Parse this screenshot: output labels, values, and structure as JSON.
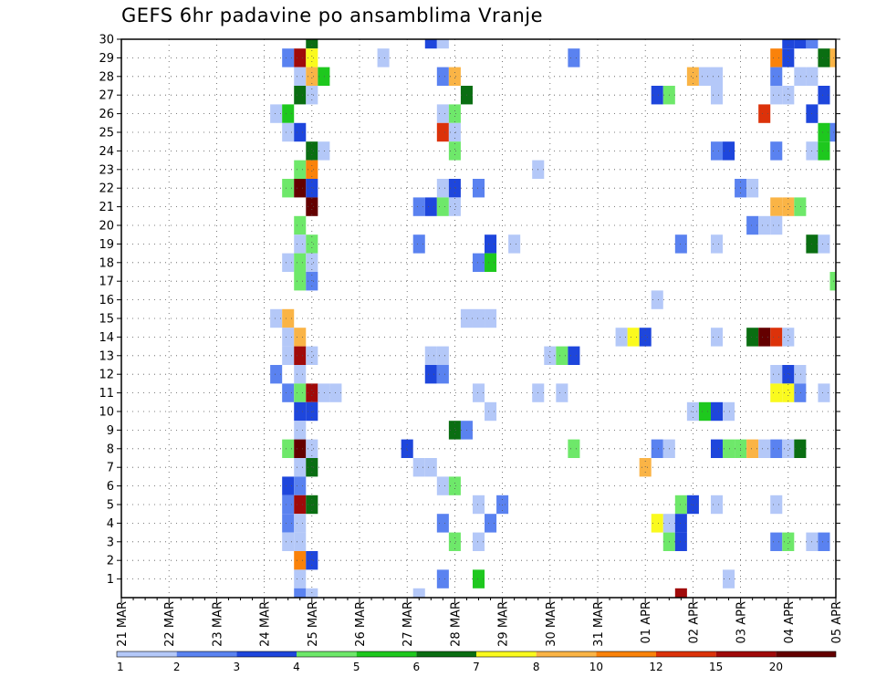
{
  "chart_data": {
    "type": "heatmap",
    "title": "GEFS 6hr padavine po ansamblima Vranje",
    "xlabel": "",
    "ylabel": "",
    "x_ticks": [
      "21 MAR",
      "22 MAR",
      "23 MAR",
      "24 MAR",
      "25 MAR",
      "26 MAR",
      "27 MAR",
      "28 MAR",
      "29 MAR",
      "30 MAR",
      "31 MAR",
      "01 APR",
      "02 APR",
      "03 APR",
      "04 APR",
      "05 APR"
    ],
    "x_range_steps": [
      0,
      60
    ],
    "step_hours": 6,
    "y_ticks": [
      1,
      2,
      3,
      4,
      5,
      6,
      7,
      8,
      9,
      10,
      11,
      12,
      13,
      14,
      15,
      16,
      17,
      18,
      19,
      20,
      21,
      22,
      23,
      24,
      25,
      26,
      27,
      28,
      29,
      30
    ],
    "y_range": [
      0,
      30
    ],
    "grid": true,
    "legend": {
      "placement": "bottom",
      "thresholds": [
        "1",
        "2",
        "3",
        "4",
        "5",
        "6",
        "7",
        "8",
        "10",
        "12",
        "15",
        "20"
      ],
      "colors": [
        "#b4c8f8",
        "#5a82f0",
        "#1e46dc",
        "#6ee86a",
        "#1ec81e",
        "#0a6e12",
        "#fafa1e",
        "#fab446",
        "#fa820a",
        "#dc320a",
        "#a00a0a",
        "#640000"
      ]
    },
    "cells": [
      [
        16,
        30,
        6
      ],
      [
        26,
        30,
        3
      ],
      [
        27,
        30,
        1
      ],
      [
        56,
        30,
        3
      ],
      [
        57,
        30,
        3
      ],
      [
        58,
        30,
        2
      ],
      [
        14,
        29,
        2
      ],
      [
        15,
        29,
        11
      ],
      [
        16,
        29,
        7
      ],
      [
        22,
        29,
        1
      ],
      [
        38,
        29,
        2
      ],
      [
        55,
        29,
        9
      ],
      [
        56,
        29,
        3
      ],
      [
        59,
        29,
        6
      ],
      [
        60,
        29,
        8
      ],
      [
        15,
        28,
        1
      ],
      [
        16,
        28,
        8
      ],
      [
        17,
        28,
        5
      ],
      [
        27,
        28,
        2
      ],
      [
        28,
        28,
        8
      ],
      [
        48,
        28,
        8
      ],
      [
        49,
        28,
        1
      ],
      [
        50,
        28,
        1
      ],
      [
        55,
        28,
        2
      ],
      [
        57,
        28,
        1
      ],
      [
        58,
        28,
        1
      ],
      [
        15,
        27,
        6
      ],
      [
        16,
        27,
        1
      ],
      [
        29,
        27,
        6
      ],
      [
        45,
        27,
        3
      ],
      [
        46,
        27,
        4
      ],
      [
        50,
        27,
        1
      ],
      [
        55,
        27,
        1
      ],
      [
        56,
        27,
        1
      ],
      [
        59,
        27,
        3
      ],
      [
        13,
        26,
        1
      ],
      [
        14,
        26,
        5
      ],
      [
        27,
        26,
        1
      ],
      [
        28,
        26,
        4
      ],
      [
        54,
        26,
        10
      ],
      [
        58,
        26,
        3
      ],
      [
        14,
        25,
        1
      ],
      [
        15,
        25,
        3
      ],
      [
        27,
        25,
        10
      ],
      [
        28,
        25,
        1
      ],
      [
        59,
        25,
        5
      ],
      [
        60,
        25,
        2
      ],
      [
        16,
        24,
        6
      ],
      [
        17,
        24,
        1
      ],
      [
        28,
        24,
        4
      ],
      [
        50,
        24,
        2
      ],
      [
        51,
        24,
        3
      ],
      [
        55,
        24,
        2
      ],
      [
        58,
        24,
        1
      ],
      [
        59,
        24,
        5
      ],
      [
        15,
        23,
        4
      ],
      [
        16,
        23,
        9
      ],
      [
        35,
        23,
        1
      ],
      [
        14,
        22,
        4
      ],
      [
        15,
        22,
        12
      ],
      [
        16,
        22,
        3
      ],
      [
        27,
        22,
        1
      ],
      [
        28,
        22,
        3
      ],
      [
        30,
        22,
        2
      ],
      [
        52,
        22,
        2
      ],
      [
        53,
        22,
        1
      ],
      [
        16,
        21,
        12
      ],
      [
        25,
        21,
        2
      ],
      [
        26,
        21,
        3
      ],
      [
        27,
        21,
        4
      ],
      [
        28,
        21,
        1
      ],
      [
        55,
        21,
        8
      ],
      [
        56,
        21,
        8
      ],
      [
        57,
        21,
        4
      ],
      [
        15,
        20,
        4
      ],
      [
        53,
        20,
        2
      ],
      [
        54,
        20,
        1
      ],
      [
        55,
        20,
        1
      ],
      [
        15,
        19,
        1
      ],
      [
        16,
        19,
        4
      ],
      [
        25,
        19,
        2
      ],
      [
        31,
        19,
        3
      ],
      [
        33,
        19,
        1
      ],
      [
        47,
        19,
        2
      ],
      [
        50,
        19,
        1
      ],
      [
        58,
        19,
        6
      ],
      [
        59,
        19,
        1
      ],
      [
        14,
        18,
        1
      ],
      [
        15,
        18,
        4
      ],
      [
        16,
        18,
        1
      ],
      [
        30,
        18,
        2
      ],
      [
        31,
        18,
        5
      ],
      [
        15,
        17,
        4
      ],
      [
        16,
        17,
        2
      ],
      [
        60,
        17,
        4
      ],
      [
        45,
        16,
        1
      ],
      [
        13,
        15,
        1
      ],
      [
        14,
        15,
        8
      ],
      [
        29,
        15,
        1
      ],
      [
        30,
        15,
        1
      ],
      [
        31,
        15,
        1
      ],
      [
        14,
        14,
        1
      ],
      [
        15,
        14,
        8
      ],
      [
        42,
        14,
        1
      ],
      [
        43,
        14,
        7
      ],
      [
        44,
        14,
        3
      ],
      [
        50,
        14,
        1
      ],
      [
        53,
        14,
        6
      ],
      [
        54,
        14,
        12
      ],
      [
        55,
        14,
        10
      ],
      [
        56,
        14,
        1
      ],
      [
        14,
        13,
        1
      ],
      [
        15,
        13,
        11
      ],
      [
        16,
        13,
        1
      ],
      [
        26,
        13,
        1
      ],
      [
        27,
        13,
        1
      ],
      [
        36,
        13,
        1
      ],
      [
        37,
        13,
        4
      ],
      [
        38,
        13,
        3
      ],
      [
        13,
        12,
        2
      ],
      [
        15,
        12,
        1
      ],
      [
        26,
        12,
        3
      ],
      [
        27,
        12,
        2
      ],
      [
        55,
        12,
        1
      ],
      [
        56,
        12,
        3
      ],
      [
        57,
        12,
        1
      ],
      [
        14,
        11,
        2
      ],
      [
        15,
        11,
        4
      ],
      [
        16,
        11,
        11
      ],
      [
        17,
        11,
        1
      ],
      [
        18,
        11,
        1
      ],
      [
        30,
        11,
        1
      ],
      [
        35,
        11,
        1
      ],
      [
        37,
        11,
        1
      ],
      [
        55,
        11,
        7
      ],
      [
        56,
        11,
        7
      ],
      [
        57,
        11,
        2
      ],
      [
        59,
        11,
        1
      ],
      [
        15,
        10,
        3
      ],
      [
        16,
        10,
        3
      ],
      [
        31,
        10,
        1
      ],
      [
        48,
        10,
        1
      ],
      [
        49,
        10,
        5
      ],
      [
        50,
        10,
        3
      ],
      [
        51,
        10,
        1
      ],
      [
        15,
        9,
        1
      ],
      [
        28,
        9,
        6
      ],
      [
        29,
        9,
        2
      ],
      [
        14,
        8,
        4
      ],
      [
        15,
        8,
        12
      ],
      [
        16,
        8,
        1
      ],
      [
        24,
        8,
        3
      ],
      [
        38,
        8,
        4
      ],
      [
        45,
        8,
        2
      ],
      [
        46,
        8,
        1
      ],
      [
        50,
        8,
        3
      ],
      [
        51,
        8,
        4
      ],
      [
        52,
        8,
        4
      ],
      [
        53,
        8,
        8
      ],
      [
        54,
        8,
        1
      ],
      [
        55,
        8,
        2
      ],
      [
        56,
        8,
        1
      ],
      [
        57,
        8,
        6
      ],
      [
        15,
        7,
        1
      ],
      [
        16,
        7,
        6
      ],
      [
        25,
        7,
        1
      ],
      [
        26,
        7,
        1
      ],
      [
        44,
        7,
        8
      ],
      [
        14,
        6,
        3
      ],
      [
        15,
        6,
        2
      ],
      [
        27,
        6,
        1
      ],
      [
        28,
        6,
        4
      ],
      [
        14,
        5,
        2
      ],
      [
        15,
        5,
        11
      ],
      [
        16,
        5,
        6
      ],
      [
        30,
        5,
        1
      ],
      [
        32,
        5,
        2
      ],
      [
        47,
        5,
        4
      ],
      [
        48,
        5,
        3
      ],
      [
        50,
        5,
        1
      ],
      [
        55,
        5,
        1
      ],
      [
        14,
        4,
        2
      ],
      [
        15,
        4,
        1
      ],
      [
        27,
        4,
        2
      ],
      [
        31,
        4,
        2
      ],
      [
        45,
        4,
        7
      ],
      [
        46,
        4,
        1
      ],
      [
        47,
        4,
        3
      ],
      [
        14,
        3,
        1
      ],
      [
        15,
        3,
        1
      ],
      [
        28,
        3,
        4
      ],
      [
        30,
        3,
        1
      ],
      [
        46,
        3,
        4
      ],
      [
        47,
        3,
        3
      ],
      [
        55,
        3,
        2
      ],
      [
        56,
        3,
        4
      ],
      [
        58,
        3,
        1
      ],
      [
        59,
        3,
        2
      ],
      [
        15,
        2,
        9
      ],
      [
        16,
        2,
        3
      ],
      [
        15,
        1,
        1
      ],
      [
        27,
        1,
        2
      ],
      [
        30,
        1,
        5
      ],
      [
        51,
        1,
        1
      ],
      [
        15,
        0,
        2
      ],
      [
        16,
        0,
        1
      ],
      [
        25,
        0,
        1
      ],
      [
        47,
        0,
        11
      ]
    ]
  }
}
